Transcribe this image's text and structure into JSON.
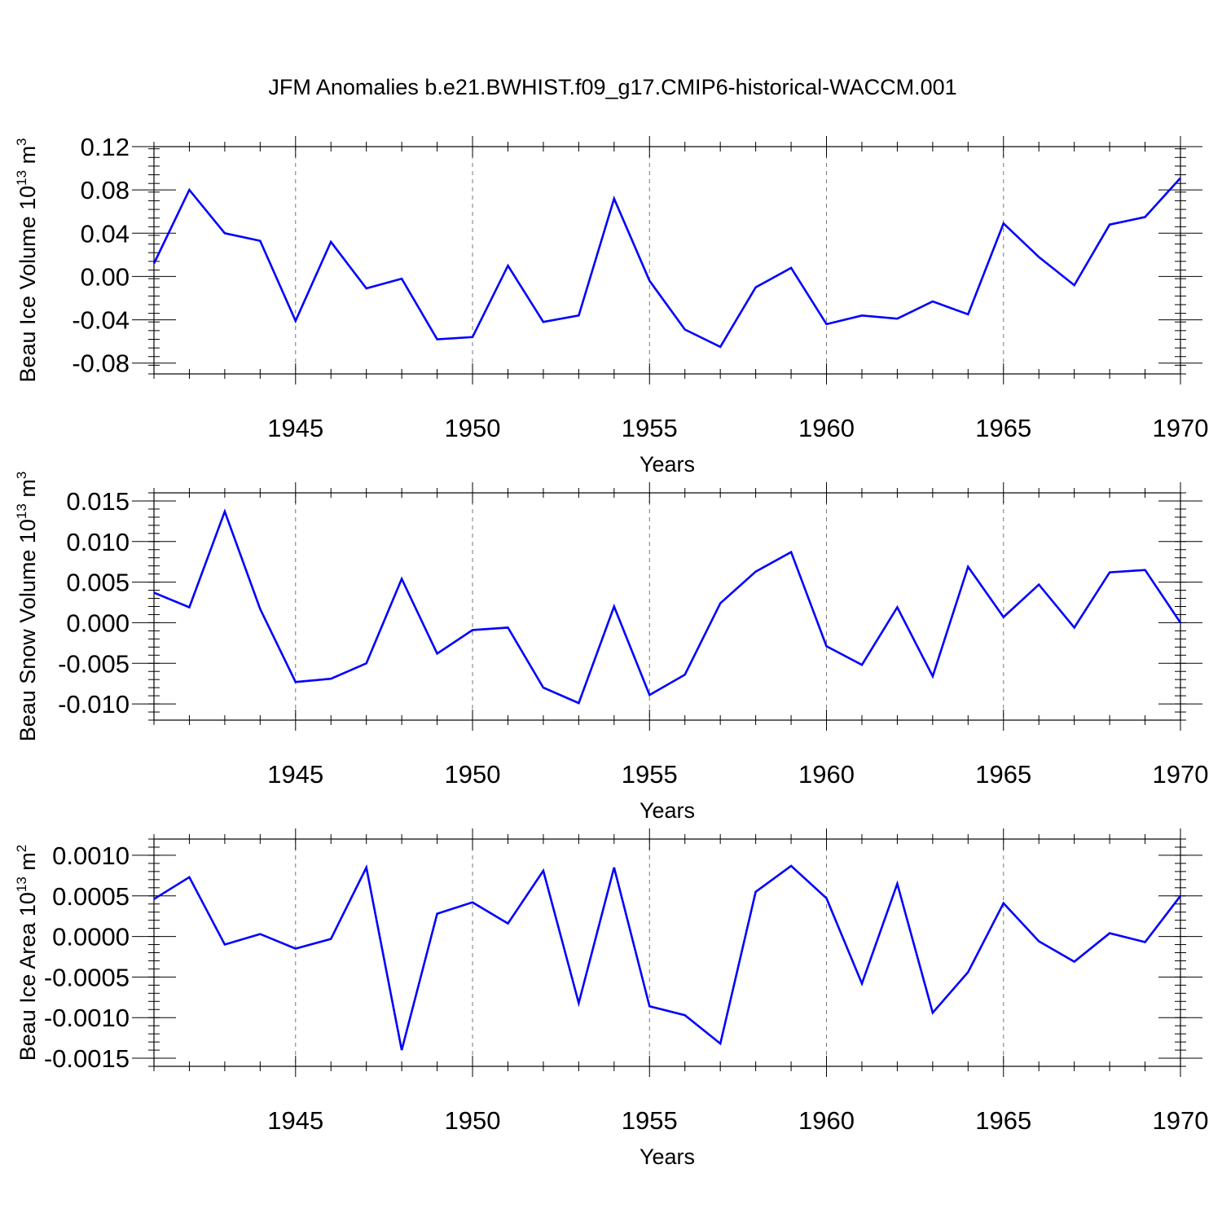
{
  "title": "JFM Anomalies b.e21.BWHIST.f09_g17.CMIP6-historical-WACCM.001",
  "line_color": "#0000ff",
  "chart_data": [
    {
      "type": "line",
      "x": [
        1941,
        1942,
        1943,
        1944,
        1945,
        1946,
        1947,
        1948,
        1949,
        1950,
        1951,
        1952,
        1953,
        1954,
        1955,
        1956,
        1957,
        1958,
        1959,
        1960,
        1961,
        1962,
        1963,
        1964,
        1965,
        1966,
        1967,
        1968,
        1969,
        1970
      ],
      "series": [
        {
          "values": [
            0.012,
            0.08,
            0.04,
            0.033,
            -0.041,
            0.032,
            -0.011,
            -0.002,
            -0.058,
            -0.056,
            0.01,
            -0.042,
            -0.036,
            0.072,
            -0.004,
            -0.049,
            -0.065,
            -0.01,
            0.008,
            -0.044,
            -0.036,
            -0.039,
            -0.023,
            -0.035,
            0.049,
            0.018,
            -0.008,
            0.048,
            0.055,
            0.091
          ]
        }
      ],
      "ylabel_main": "Beau Ice Volume 10",
      "ylabel_exp": "13",
      "ylabel_unit": " m",
      "ylabel_unit_exp": "3",
      "xlabel": "Years",
      "xlim": [
        1941,
        1970
      ],
      "ylim": [
        -0.09,
        0.12
      ],
      "yticks": [
        "-0.08",
        "-0.04",
        "0.00",
        "0.04",
        "0.08",
        "0.12"
      ],
      "ytick_values": [
        -0.08,
        -0.04,
        0.0,
        0.04,
        0.08,
        0.12
      ],
      "xticks": [
        "1945",
        "1950",
        "1955",
        "1960",
        "1965",
        "1970"
      ],
      "xtick_values": [
        1945,
        1950,
        1955,
        1960,
        1965,
        1970
      ]
    },
    {
      "type": "line",
      "x": [
        1941,
        1942,
        1943,
        1944,
        1945,
        1946,
        1947,
        1948,
        1949,
        1950,
        1951,
        1952,
        1953,
        1954,
        1955,
        1956,
        1957,
        1958,
        1959,
        1960,
        1961,
        1962,
        1963,
        1964,
        1965,
        1966,
        1967,
        1968,
        1969,
        1970
      ],
      "series": [
        {
          "values": [
            0.0037,
            0.0019,
            0.0137,
            0.0017,
            -0.0073,
            -0.0069,
            -0.005,
            0.0054,
            -0.0038,
            -0.0009,
            -0.0006,
            -0.008,
            -0.0099,
            0.002,
            -0.0089,
            -0.0064,
            0.0024,
            0.0063,
            0.0087,
            -0.0029,
            -0.0052,
            0.0019,
            -0.0066,
            0.0069,
            0.0007,
            0.0047,
            -0.0006,
            0.0062,
            0.0065,
            0.0
          ]
        }
      ],
      "ylabel_main": "Beau Snow Volume 10",
      "ylabel_exp": "13",
      "ylabel_unit": " m",
      "ylabel_unit_exp": "3",
      "xlabel": "Years",
      "xlim": [
        1941,
        1970
      ],
      "ylim": [
        -0.012,
        0.016
      ],
      "yticks": [
        "-0.010",
        "-0.005",
        "0.000",
        "0.005",
        "0.010",
        "0.015"
      ],
      "ytick_values": [
        -0.01,
        -0.005,
        0.0,
        0.005,
        0.01,
        0.015
      ],
      "xticks": [
        "1945",
        "1950",
        "1955",
        "1960",
        "1965",
        "1970"
      ],
      "xtick_values": [
        1945,
        1950,
        1955,
        1960,
        1965,
        1970
      ]
    },
    {
      "type": "line",
      "x": [
        1941,
        1942,
        1943,
        1944,
        1945,
        1946,
        1947,
        1948,
        1949,
        1950,
        1951,
        1952,
        1953,
        1954,
        1955,
        1956,
        1957,
        1958,
        1959,
        1960,
        1961,
        1962,
        1963,
        1964,
        1965,
        1966,
        1967,
        1968,
        1969,
        1970
      ],
      "series": [
        {
          "values": [
            0.00046,
            0.00073,
            -0.0001,
            3e-05,
            -0.00015,
            -3e-05,
            0.00085,
            -0.0014,
            0.00028,
            0.00042,
            0.00016,
            0.00081,
            -0.00082,
            0.00085,
            -0.00086,
            -0.00097,
            -0.00132,
            0.00055,
            0.00087,
            0.00047,
            -0.00058,
            0.00065,
            -0.00094,
            -0.00044,
            0.00041,
            -6e-05,
            -0.00031,
            4e-05,
            -7e-05,
            0.0005
          ]
        }
      ],
      "ylabel_main": "Beau Ice Area 10",
      "ylabel_exp": "13",
      "ylabel_unit": " m",
      "ylabel_unit_exp": "2",
      "xlabel": "Years",
      "xlim": [
        1941,
        1970
      ],
      "ylim": [
        -0.0016,
        0.0012
      ],
      "yticks": [
        "-0.0015",
        "-0.0010",
        "-0.0005",
        "0.0000",
        "0.0005",
        "0.0010"
      ],
      "ytick_values": [
        -0.0015,
        -0.001,
        -0.0005,
        0.0,
        0.0005,
        0.001
      ],
      "xticks": [
        "1945",
        "1950",
        "1955",
        "1960",
        "1965",
        "1970"
      ],
      "xtick_values": [
        1945,
        1950,
        1955,
        1960,
        1965,
        1970
      ]
    }
  ]
}
